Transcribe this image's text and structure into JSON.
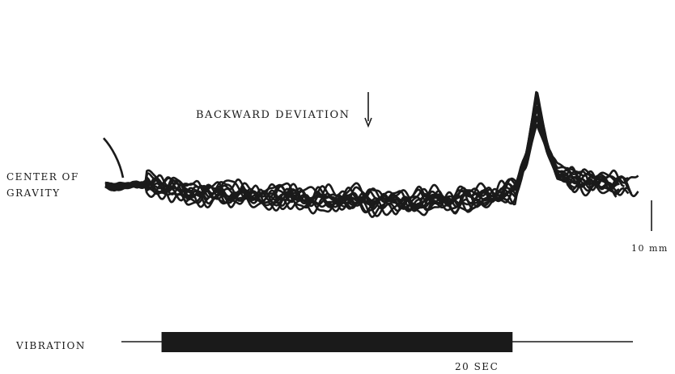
{
  "chart_data": {
    "type": "line",
    "title": "",
    "annotation": "BACKWARD DEVIATION",
    "ylabel_lines": [
      "CENTER OF",
      "GRAVITY"
    ],
    "scale_bar_label": "10 mm",
    "stimulus_label": "VIBRATION",
    "time_label": "20 SEC",
    "x_unit": "sec",
    "y_unit": "mm",
    "xlim": [
      0,
      26
    ],
    "ylim": [
      -12,
      32
    ],
    "trace_count": 12,
    "traces_description_values": {
      "x": [
        0,
        1,
        2,
        3,
        4,
        5,
        6,
        7,
        8,
        9,
        10,
        11,
        12,
        13,
        14,
        15,
        16,
        17,
        18,
        19,
        20,
        20.5,
        21,
        21.5,
        22,
        22.5,
        23,
        24,
        25,
        26
      ],
      "mean_y": [
        0,
        0,
        0.5,
        0,
        -2,
        -2.5,
        -2,
        -3,
        -3.5,
        -3,
        -4,
        -4.5,
        -3.5,
        -5,
        -4.5,
        -5,
        -4.5,
        -4,
        -4,
        -3,
        -1,
        10,
        30,
        14,
        4,
        3,
        2,
        1,
        0.5,
        0.5
      ]
    },
    "stimulus": {
      "baseline_x": [
        0.5,
        26
      ],
      "on_x": [
        2.5,
        20
      ]
    },
    "arrow_x": 13.0,
    "colors": {
      "ink": "#1a1a1a"
    }
  }
}
